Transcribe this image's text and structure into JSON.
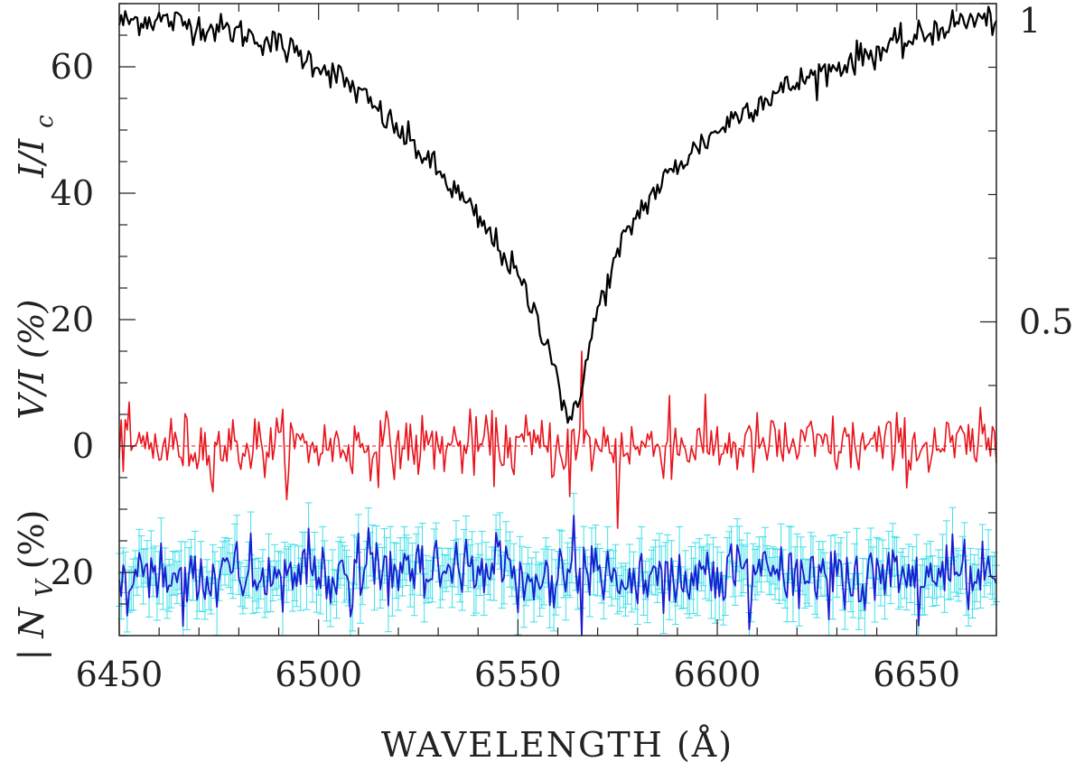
{
  "chart_data": {
    "type": "line",
    "xlabel": "WAVELENGTH (Å)",
    "ylabel_left": [
      "| N",
      "V",
      " (%)",
      "V/I (%)",
      "I/I",
      "c"
    ],
    "ylabel_right": "",
    "xlim": [
      6450,
      6670
    ],
    "ylim": [
      -30,
      70
    ],
    "ylim_right": [
      0.007,
      1
    ],
    "x_ticks": [
      "6450",
      "6500",
      "6550",
      "6600",
      "6650"
    ],
    "y_ticks": [
      "0",
      "20",
      "40",
      "60"
    ],
    "y_tick_values": [
      0,
      20,
      40,
      60
    ],
    "y_tick_bottom": {
      "label": "20",
      "value": -20
    },
    "y_right_ticks": [
      "1",
      "0.5"
    ],
    "y_right_tick_values": [
      1,
      0.5
    ],
    "zero_line": {
      "value": 0,
      "style": "dashed"
    },
    "grid": false,
    "colors": {
      "intensity": "#000000",
      "stokes_v": "#e8141c",
      "null": "#1a1ad0",
      "errorbars": "#3fe0e8",
      "zero_line": "#e8141c",
      "frame": "#222222"
    },
    "series": [
      {
        "id": "intensity",
        "axis": "right",
        "x": [
          6450,
          6455,
          6460,
          6465,
          6470,
          6475,
          6480,
          6485,
          6490,
          6495,
          6500,
          6505,
          6510,
          6515,
          6520,
          6525,
          6530,
          6535,
          6540,
          6545,
          6550,
          6553,
          6556,
          6559,
          6561,
          6562.8,
          6564,
          6566,
          6568,
          6570,
          6573,
          6576,
          6580,
          6585,
          6590,
          6595,
          6600,
          6605,
          6610,
          6615,
          6620,
          6625,
          6630,
          6635,
          6640,
          6645,
          6650,
          6655,
          6660,
          6665,
          6670
        ],
        "y": [
          0.97,
          0.975,
          0.975,
          0.97,
          0.965,
          0.96,
          0.955,
          0.945,
          0.935,
          0.92,
          0.905,
          0.885,
          0.86,
          0.83,
          0.8,
          0.77,
          0.735,
          0.7,
          0.66,
          0.62,
          0.57,
          0.53,
          0.49,
          0.44,
          0.38,
          0.32,
          0.37,
          0.4,
          0.46,
          0.52,
          0.57,
          0.62,
          0.67,
          0.71,
          0.745,
          0.775,
          0.8,
          0.825,
          0.845,
          0.86,
          0.875,
          0.89,
          0.9,
          0.915,
          0.925,
          0.935,
          0.945,
          0.96,
          0.97,
          0.975,
          0.975
        ]
      },
      {
        "id": "stokes-v",
        "axis": "left",
        "x_range": [
          6450,
          6670
        ],
        "mean": 0,
        "rms": 2.5,
        "features": [
          {
            "x": 6575,
            "y": -13
          },
          {
            "x": 6566,
            "y": 15
          },
          {
            "x": 6563,
            "y": -8
          },
          {
            "x": 6588,
            "y": 8
          }
        ]
      },
      {
        "id": "null-nv",
        "axis": "left",
        "x_range": [
          6450,
          6670
        ],
        "mean": -20.5,
        "rms": 2.8,
        "errorbar": 3.2,
        "features": [
          {
            "x": 6564,
            "y": -11
          },
          {
            "x": 6566,
            "y": -30
          },
          {
            "x": 6608,
            "y": -29
          }
        ]
      }
    ]
  }
}
